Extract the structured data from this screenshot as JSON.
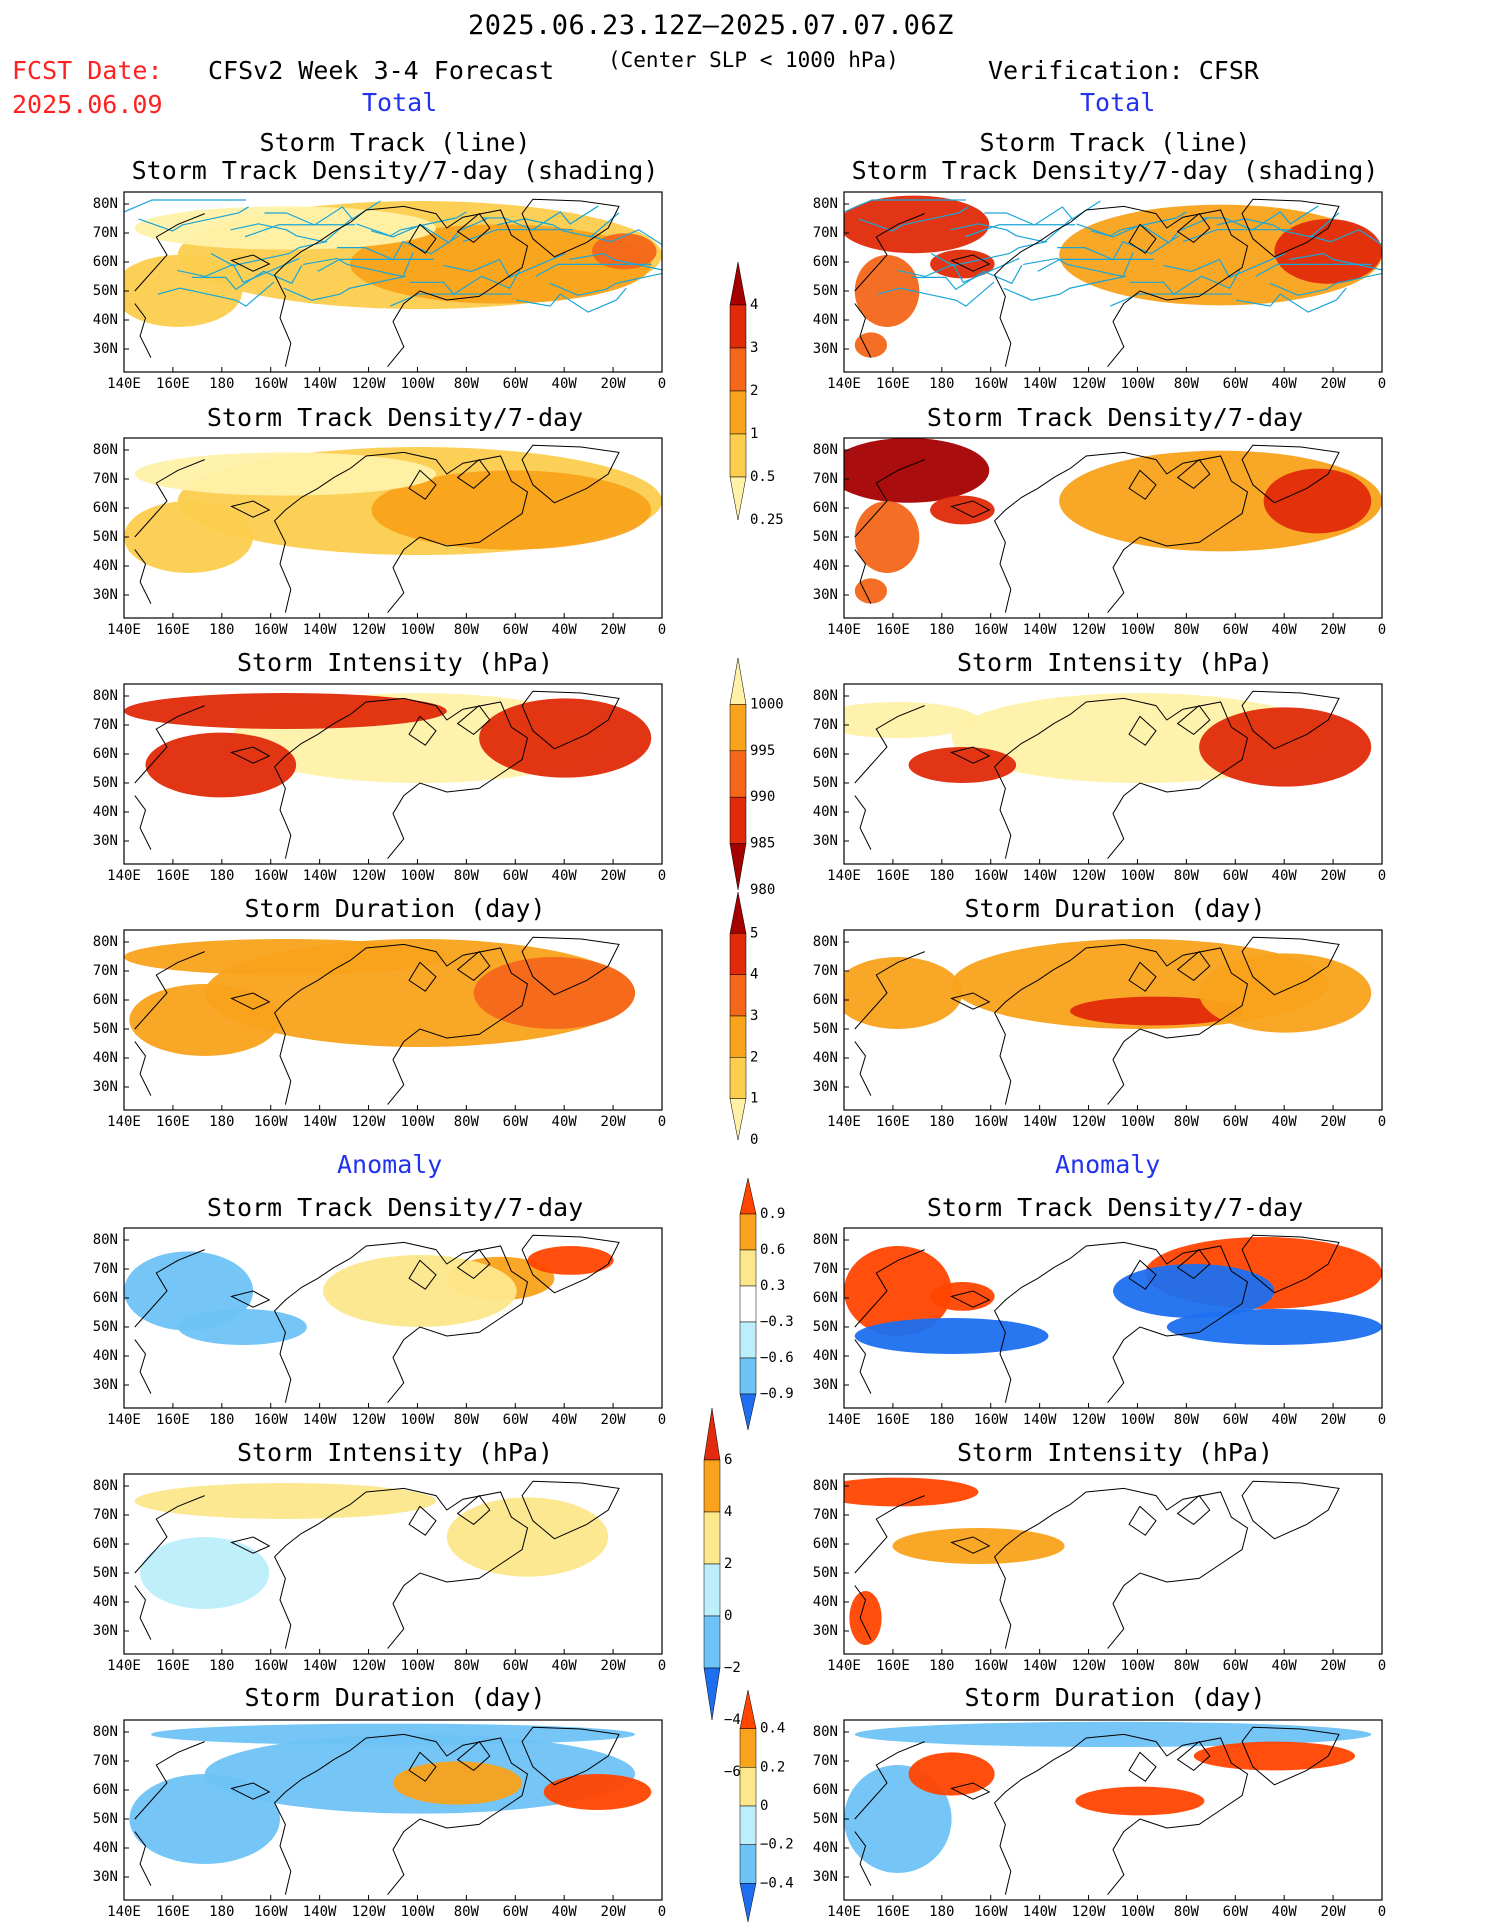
{
  "header": {
    "time_range": "2025.06.23.12Z–2025.07.07.06Z",
    "fcst_label": "FCST Date:",
    "fcst_date": "2025.06.09",
    "left_title": "CFSv2 Week 3-4 Forecast",
    "criterion": "(Center SLP < 1000 hPa)",
    "right_title": "Verification: CFSR"
  },
  "sections": {
    "total_left": "Total",
    "total_right": "Total",
    "anomaly_left": "Anomaly",
    "anomaly_right": "Anomaly"
  },
  "panel_titles": {
    "track_line": "Storm Track (line)",
    "track_shading": "Storm Track Density/7-day (shading)",
    "density": "Storm Track Density/7-day",
    "intensity": "Storm Intensity (hPa)",
    "duration": "Storm Duration (day)"
  },
  "axes": {
    "lat_labels": [
      "80N",
      "70N",
      "60N",
      "50N",
      "40N",
      "30N"
    ],
    "lon_labels": [
      "140E",
      "160E",
      "180",
      "160W",
      "140W",
      "120W",
      "100W",
      "80W",
      "60W",
      "40W",
      "20W",
      "0"
    ]
  },
  "colorbars": {
    "density_total": {
      "labels": [
        "4",
        "3",
        "2",
        "1",
        "0.5",
        "0.25"
      ],
      "colors": [
        "#a50000",
        "#e02a0a",
        "#f4661a",
        "#f9a21b",
        "#fccd4e",
        "#fff1a8"
      ]
    },
    "intensity_total": {
      "labels": [
        "1000",
        "995",
        "990",
        "985",
        "980"
      ],
      "colors": [
        "#fff1a8",
        "#f9a21b",
        "#f4661a",
        "#e02a0a",
        "#a50000"
      ]
    },
    "duration_total": {
      "labels": [
        "5",
        "4",
        "3",
        "2",
        "1",
        "0"
      ],
      "colors": [
        "#a50000",
        "#e02a0a",
        "#f4661a",
        "#f9a21b",
        "#fccd4e",
        "#fff1a8"
      ]
    },
    "density_anom": {
      "labels": [
        "0.9",
        "0.6",
        "0.3",
        "−0.3",
        "−0.6",
        "−0.9"
      ],
      "colors": [
        "#ff4500",
        "#f9a21b",
        "#fde78c",
        "#ffffff",
        "#bdeefc",
        "#6ec3f6",
        "#1e6ff0"
      ]
    },
    "intensity_anom": {
      "labels": [
        "6",
        "4",
        "2",
        "0",
        "−2",
        "−4",
        "−6"
      ],
      "colors": [
        "#e22b0e",
        "#f9a21b",
        "#fde78c",
        "#bdeefc",
        "#6ec3f6",
        "#1e6ff0"
      ]
    },
    "duration_anom": {
      "labels": [
        "0.4",
        "0.2",
        "0",
        "−0.2",
        "−0.4"
      ],
      "colors": [
        "#ff4500",
        "#f9a21b",
        "#fde78c",
        "#bdeefc",
        "#6ec3f6",
        "#1e6ff0"
      ]
    }
  },
  "colors": {
    "red_text": "#ff2020",
    "blue_text": "#2233ee",
    "track_line": "#1aa6d8"
  }
}
